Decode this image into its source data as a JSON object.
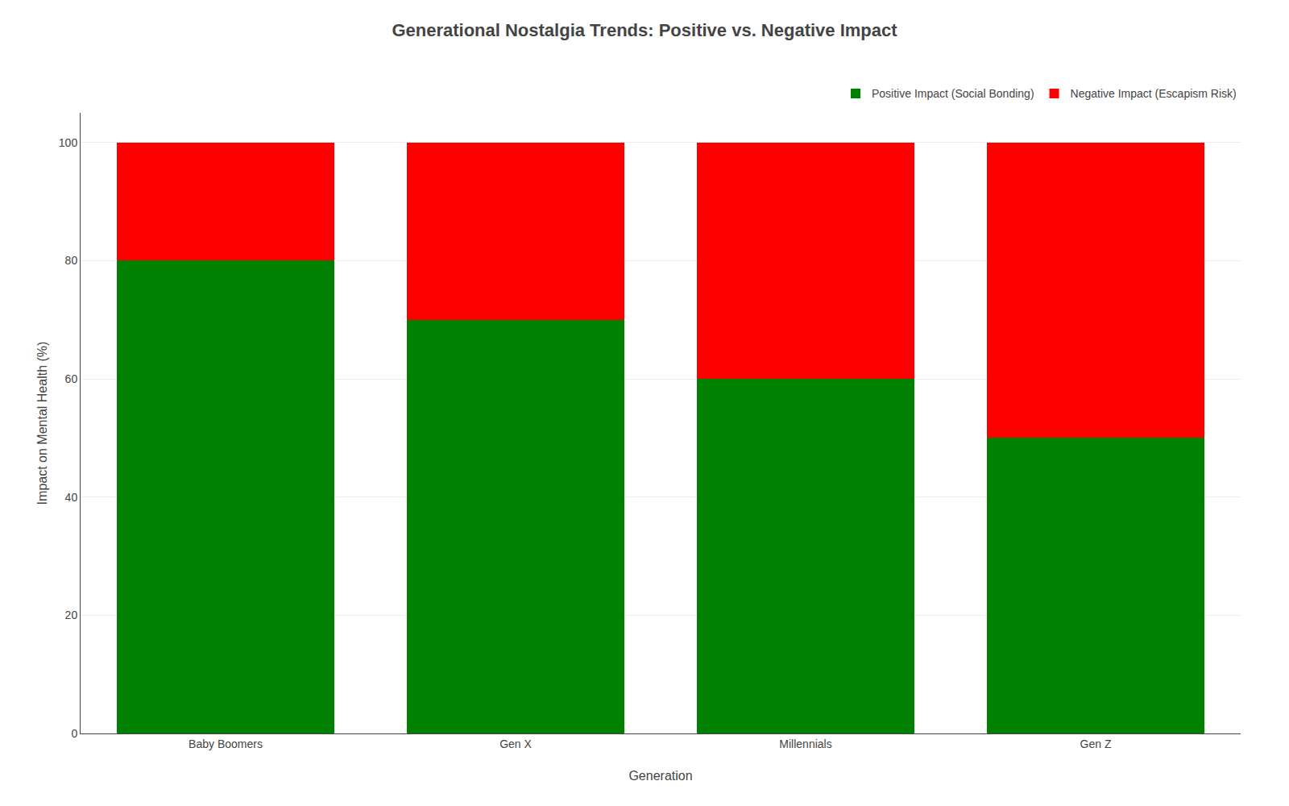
{
  "chart_data": {
    "type": "bar",
    "stacked": true,
    "title": "Generational Nostalgia Trends: Positive vs. Negative Impact",
    "xlabel": "Generation",
    "ylabel": "Impact on Mental Health (%)",
    "categories": [
      "Baby Boomers",
      "Gen X",
      "Millennials",
      "Gen Z"
    ],
    "series": [
      {
        "name": "Positive Impact (Social Bonding)",
        "color": "#008000",
        "values": [
          80,
          70,
          60,
          50
        ]
      },
      {
        "name": "Negative Impact (Escapism Risk)",
        "color": "#ff0000",
        "values": [
          20,
          30,
          40,
          50
        ]
      }
    ],
    "ylim": [
      0,
      105
    ],
    "yticks": [
      0,
      20,
      40,
      60,
      80,
      100
    ],
    "grid": true,
    "legend": "upper right"
  }
}
